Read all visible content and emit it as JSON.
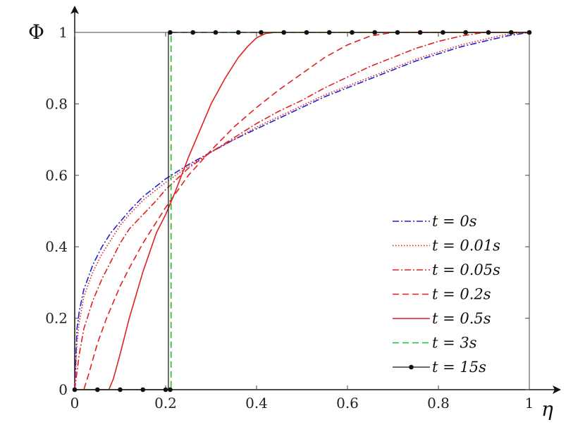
{
  "chart_data": {
    "type": "line",
    "title": "",
    "xlabel": "η",
    "ylabel": "Φ",
    "xlim": [
      0,
      1
    ],
    "ylim": [
      0,
      1
    ],
    "xticks": [
      0,
      0.2,
      0.4,
      0.6,
      0.8,
      1
    ],
    "yticks": [
      0,
      0.2,
      0.4,
      0.6,
      0.8,
      1
    ],
    "xtick_labels": [
      "0",
      "0.2",
      "0.4",
      "0.6",
      "0.8",
      "1"
    ],
    "ytick_labels": [
      "0",
      "0.2",
      "0.4",
      "0.6",
      "0.8",
      "1"
    ],
    "grid": false,
    "legend_position": "bottom-right",
    "series": [
      {
        "name": "t = 0s",
        "color": "#1f1fd6",
        "style": "dashdot",
        "x": [
          0,
          0.005,
          0.01,
          0.02,
          0.04,
          0.06,
          0.08,
          0.1,
          0.12,
          0.15,
          0.18,
          0.2,
          0.25,
          0.3,
          0.35,
          0.4,
          0.45,
          0.5,
          0.55,
          0.6,
          0.65,
          0.7,
          0.75,
          0.8,
          0.85,
          0.9,
          0.95,
          1.0
        ],
        "y": [
          0,
          0.17,
          0.22,
          0.28,
          0.35,
          0.4,
          0.44,
          0.47,
          0.5,
          0.54,
          0.57,
          0.59,
          0.63,
          0.665,
          0.7,
          0.73,
          0.76,
          0.79,
          0.82,
          0.845,
          0.87,
          0.895,
          0.92,
          0.94,
          0.96,
          0.975,
          0.99,
          1.0
        ]
      },
      {
        "name": "t = 0.01s",
        "color": "#e02020",
        "style": "dotted",
        "x": [
          0,
          0.005,
          0.01,
          0.02,
          0.04,
          0.06,
          0.08,
          0.1,
          0.12,
          0.15,
          0.18,
          0.2,
          0.25,
          0.3,
          0.35,
          0.4,
          0.45,
          0.5,
          0.55,
          0.6,
          0.65,
          0.7,
          0.75,
          0.8,
          0.85,
          0.9,
          0.95,
          1.0
        ],
        "y": [
          0,
          0.13,
          0.19,
          0.26,
          0.33,
          0.38,
          0.42,
          0.46,
          0.49,
          0.53,
          0.56,
          0.58,
          0.625,
          0.665,
          0.7,
          0.735,
          0.765,
          0.795,
          0.825,
          0.85,
          0.875,
          0.9,
          0.925,
          0.945,
          0.965,
          0.98,
          0.995,
          1.0
        ]
      },
      {
        "name": "t = 0.05s",
        "color": "#e02020",
        "style": "dashdot",
        "x": [
          0,
          0.01,
          0.02,
          0.04,
          0.06,
          0.08,
          0.1,
          0.12,
          0.15,
          0.18,
          0.2,
          0.25,
          0.3,
          0.35,
          0.4,
          0.45,
          0.5,
          0.55,
          0.6,
          0.65,
          0.7,
          0.75,
          0.8,
          0.85,
          0.9,
          0.95,
          1.0
        ],
        "y": [
          0,
          0.1,
          0.17,
          0.25,
          0.31,
          0.36,
          0.41,
          0.45,
          0.49,
          0.53,
          0.56,
          0.62,
          0.665,
          0.705,
          0.745,
          0.78,
          0.81,
          0.845,
          0.875,
          0.905,
          0.93,
          0.955,
          0.975,
          0.99,
          1.0,
          1.0,
          1.0
        ]
      },
      {
        "name": "t = 0.2s",
        "color": "#e02020",
        "style": "dashed",
        "x": [
          0,
          0.02,
          0.03,
          0.05,
          0.07,
          0.1,
          0.12,
          0.15,
          0.18,
          0.2,
          0.25,
          0.3,
          0.35,
          0.4,
          0.45,
          0.5,
          0.55,
          0.6,
          0.65,
          0.7,
          0.75,
          0.8,
          0.9,
          1.0
        ],
        "y": [
          0,
          0,
          0.04,
          0.13,
          0.2,
          0.29,
          0.34,
          0.41,
          0.47,
          0.51,
          0.6,
          0.67,
          0.735,
          0.79,
          0.84,
          0.885,
          0.93,
          0.965,
          0.99,
          1.0,
          1.0,
          1.0,
          1.0,
          1.0
        ]
      },
      {
        "name": "t = 0.5s",
        "color": "#e02020",
        "style": "solid",
        "x": [
          0,
          0.075,
          0.085,
          0.1,
          0.12,
          0.15,
          0.18,
          0.2,
          0.22,
          0.25,
          0.28,
          0.3,
          0.33,
          0.36,
          0.38,
          0.4,
          0.42,
          0.44,
          0.46,
          0.5,
          0.6,
          0.7,
          0.8,
          0.9,
          1.0
        ],
        "y": [
          0,
          0,
          0.03,
          0.1,
          0.2,
          0.33,
          0.44,
          0.49,
          0.55,
          0.65,
          0.74,
          0.8,
          0.87,
          0.93,
          0.96,
          0.985,
          0.997,
          1.0,
          1.0,
          1.0,
          1.0,
          1.0,
          1.0,
          1.0,
          1.0
        ]
      },
      {
        "name": "t = 3s",
        "color": "#22bb22",
        "style": "dashed",
        "x": [
          0,
          0.212,
          0.212,
          1.0
        ],
        "y": [
          0,
          0,
          1.0,
          1.0
        ]
      },
      {
        "name": "t = 15s",
        "color": "#111111",
        "style": "solid-dot",
        "x": [
          0,
          0.206,
          0.206,
          1.0
        ],
        "y": [
          0,
          0,
          1.0,
          1.0
        ],
        "markers_x": [
          0,
          0.05,
          0.1,
          0.15,
          0.2,
          0.21,
          0.21,
          0.26,
          0.31,
          0.36,
          0.41,
          0.46,
          0.51,
          0.56,
          0.61,
          0.66,
          0.71,
          0.76,
          0.81,
          0.86,
          0.91,
          0.96,
          1.0
        ],
        "markers_y": [
          0,
          0,
          0,
          0,
          0,
          0,
          1,
          1,
          1,
          1,
          1,
          1,
          1,
          1,
          1,
          1,
          1,
          1,
          1,
          1,
          1,
          1,
          1
        ]
      }
    ]
  }
}
